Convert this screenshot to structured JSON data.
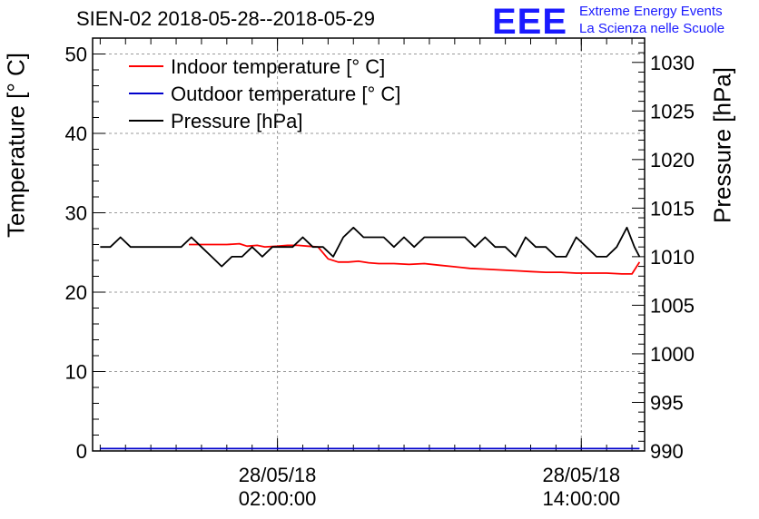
{
  "chart_data": {
    "type": "line",
    "title": "SIEN-02 2018-05-28--2018-05-29",
    "ylabel_left": "Temperature [° C]",
    "ylabel_right": "Pressure [hPa]",
    "ylim_left": [
      0,
      52
    ],
    "ylim_right": [
      990,
      1032.5
    ],
    "yticks_left": [
      0,
      10,
      20,
      30,
      40,
      50
    ],
    "yticks_right": [
      990,
      995,
      1000,
      1005,
      1010,
      1015,
      1020,
      1025,
      1030
    ],
    "xlim_hours": [
      -5.3,
      16.5
    ],
    "xticks": [
      {
        "hour": 2,
        "line1": "28/05/18",
        "line2": "02:00:00"
      },
      {
        "hour": 14,
        "line1": "28/05/18",
        "line2": "14:00:00"
      }
    ],
    "grid": true,
    "legend_position": "top-left",
    "legend": [
      {
        "label": "Indoor temperature [° C]",
        "color": "#ff0000"
      },
      {
        "label": "Outdoor temperature [° C]",
        "color": "#0000cc"
      },
      {
        "label": "Pressure [hPa]",
        "color": "#000000"
      }
    ],
    "series": [
      {
        "name": "Indoor temperature [° C]",
        "axis": "left",
        "color": "#ff0000",
        "x": [
          -1.5,
          -1.0,
          0.0,
          0.5,
          0.8,
          1.2,
          1.5,
          2.0,
          2.4,
          2.8,
          3.2,
          3.6,
          4.0,
          4.4,
          4.8,
          5.2,
          5.6,
          6.0,
          6.6,
          7.2,
          7.8,
          8.4,
          9.0,
          9.6,
          10.2,
          10.8,
          11.4,
          12.0,
          12.6,
          13.2,
          13.8,
          14.4,
          15.0,
          15.6,
          16.0,
          16.3
        ],
        "y": [
          26.0,
          26.0,
          26.0,
          26.1,
          25.8,
          25.9,
          25.7,
          25.8,
          25.9,
          25.9,
          25.8,
          25.7,
          24.2,
          23.8,
          23.8,
          23.9,
          23.7,
          23.6,
          23.6,
          23.5,
          23.6,
          23.4,
          23.2,
          23.0,
          22.9,
          22.8,
          22.7,
          22.6,
          22.5,
          22.5,
          22.4,
          22.4,
          22.4,
          22.3,
          22.3,
          23.8
        ]
      },
      {
        "name": "Outdoor temperature [° C]",
        "axis": "left",
        "color": "#0000cc",
        "x": [
          -5.0,
          16.3
        ],
        "y": [
          0.3,
          0.3
        ]
      },
      {
        "name": "Pressure [hPa]",
        "axis": "right",
        "color": "#000000",
        "x": [
          -5.0,
          -4.6,
          -4.2,
          -3.8,
          -3.4,
          -3.0,
          -2.6,
          -2.2,
          -1.8,
          -1.4,
          -1.0,
          -0.6,
          -0.2,
          0.2,
          0.6,
          1.0,
          1.4,
          1.8,
          2.2,
          2.6,
          3.0,
          3.4,
          3.8,
          4.2,
          4.6,
          5.0,
          5.4,
          5.8,
          6.2,
          6.6,
          7.0,
          7.4,
          7.8,
          8.2,
          8.6,
          9.0,
          9.4,
          9.8,
          10.2,
          10.6,
          11.0,
          11.4,
          11.8,
          12.2,
          12.6,
          13.0,
          13.4,
          13.8,
          14.2,
          14.6,
          15.0,
          15.4,
          15.8,
          16.1,
          16.3
        ],
        "y": [
          1011,
          1011,
          1012,
          1011,
          1011,
          1011,
          1011,
          1011,
          1011,
          1012,
          1011,
          1010,
          1009,
          1010,
          1010,
          1011,
          1010,
          1011,
          1011,
          1011,
          1012,
          1011,
          1011,
          1010,
          1012,
          1013,
          1012,
          1012,
          1012,
          1011,
          1012,
          1011,
          1012,
          1012,
          1012,
          1012,
          1012,
          1011,
          1012,
          1011,
          1011,
          1010,
          1012,
          1011,
          1011,
          1010,
          1010,
          1012,
          1011,
          1010,
          1010,
          1011,
          1013,
          1011,
          1010
        ]
      }
    ]
  },
  "logo": {
    "mark": "EEE",
    "line1": "Extreme Energy Events",
    "line2": "La Scienza nelle Scuole"
  }
}
